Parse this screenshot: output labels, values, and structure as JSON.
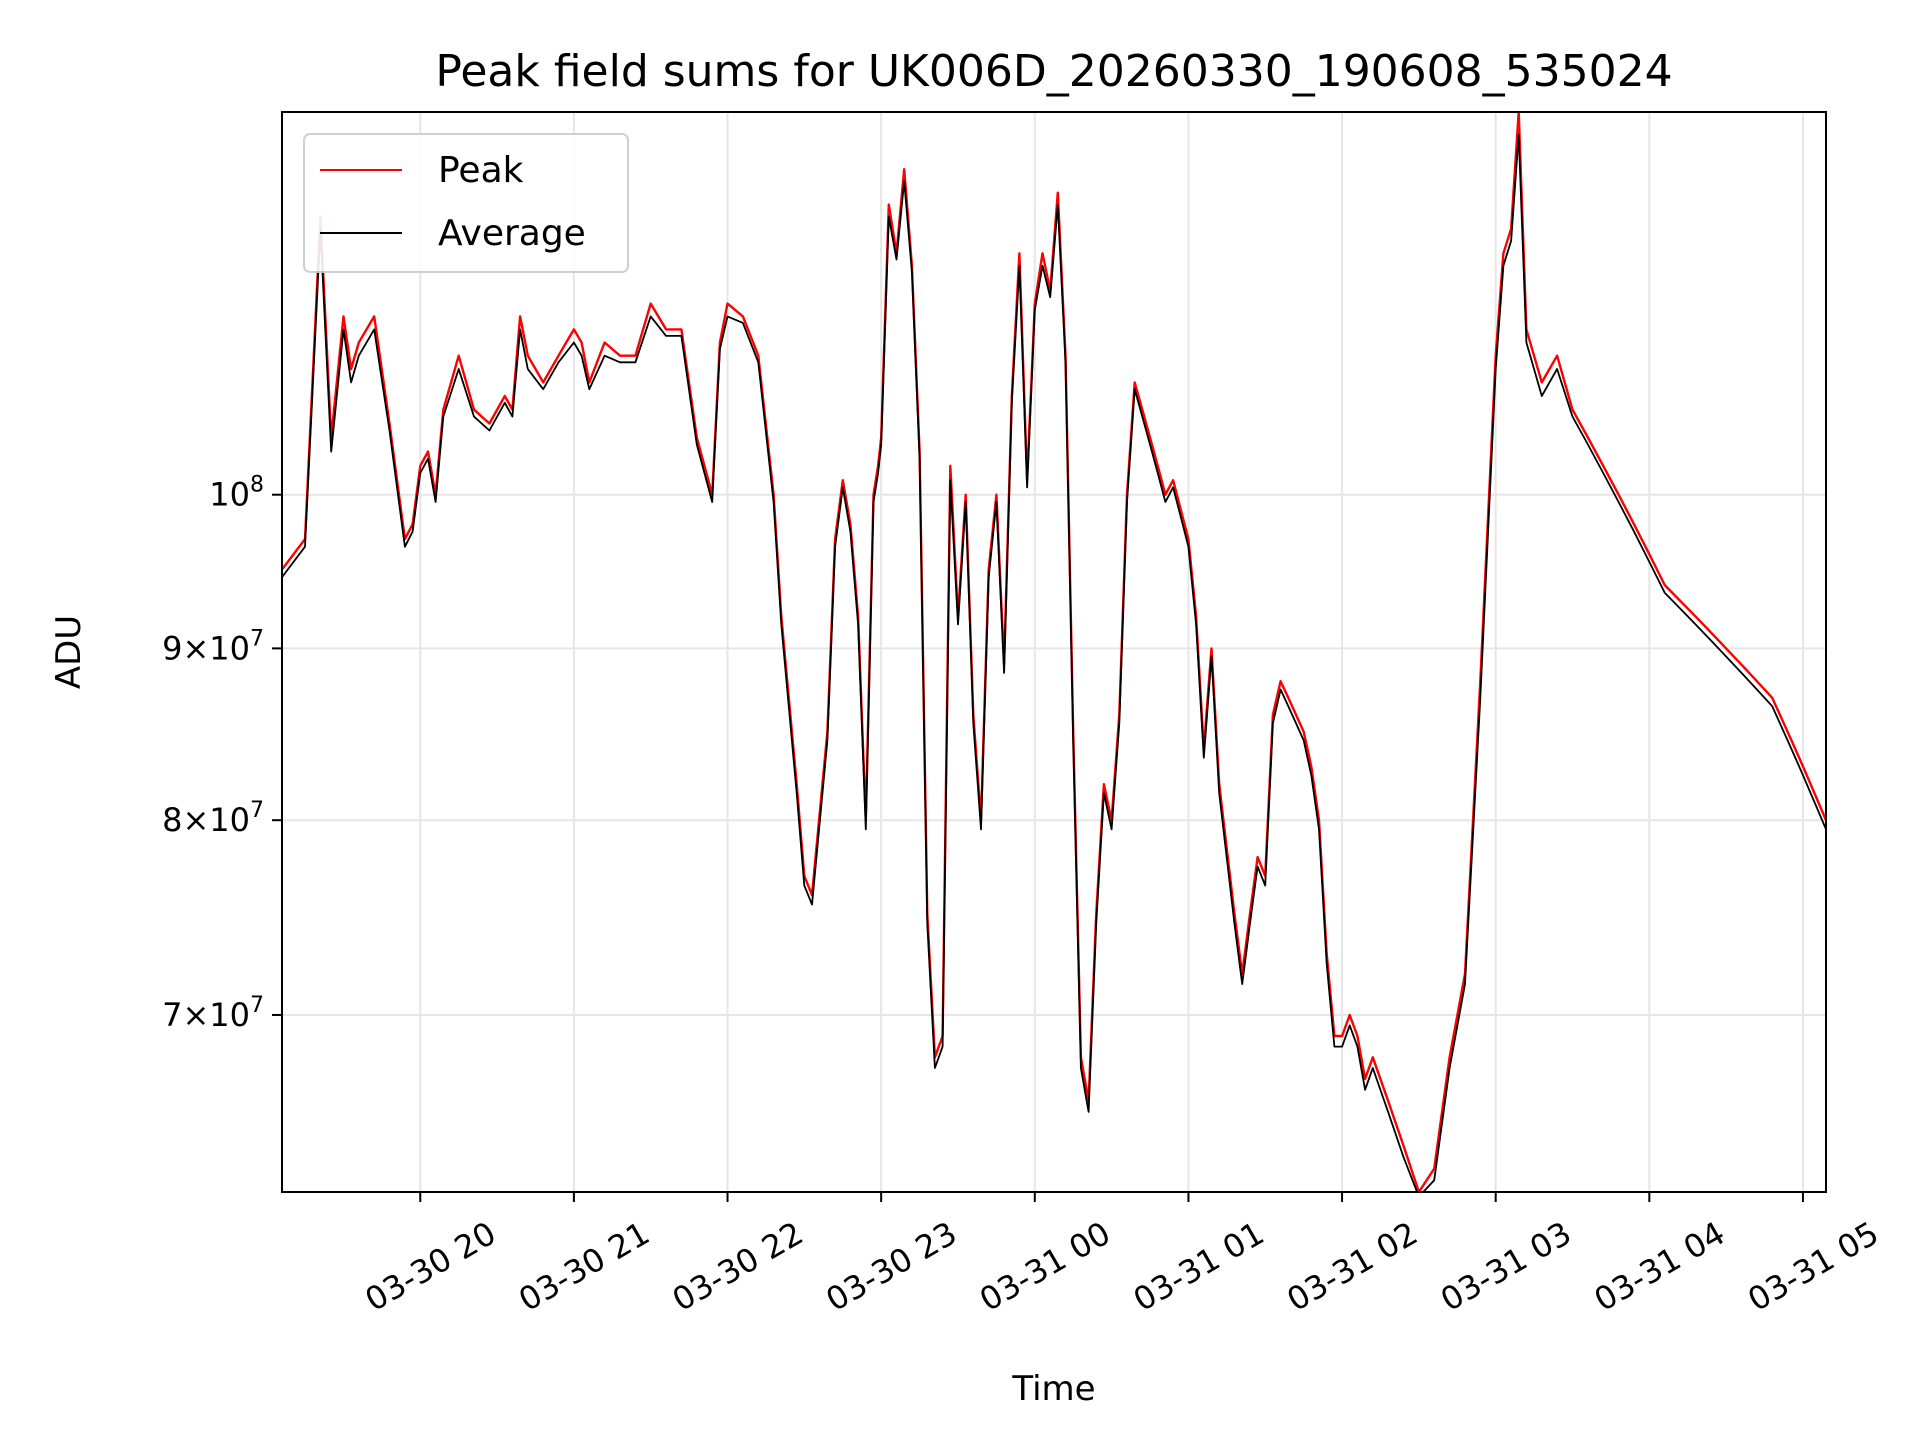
{
  "chart_data": {
    "type": "line",
    "title": "Peak field sums for UK006D_20260330_190608_535024",
    "xlabel": "Time",
    "ylabel": "ADU",
    "x_range_hours": [
      19.1,
      29.15
    ],
    "y_scale": "log",
    "ylim": [
      62000000,
      130000000
    ],
    "grid": true,
    "legend_position": "top-left",
    "x_ticks": [
      {
        "label": "03-30 20",
        "hour": 20
      },
      {
        "label": "03-30 21",
        "hour": 21
      },
      {
        "label": "03-30 22",
        "hour": 22
      },
      {
        "label": "03-30 23",
        "hour": 23
      },
      {
        "label": "03-31 00",
        "hour": 24
      },
      {
        "label": "03-31 01",
        "hour": 25
      },
      {
        "label": "03-31 02",
        "hour": 26
      },
      {
        "label": "03-31 03",
        "hour": 27
      },
      {
        "label": "03-31 04",
        "hour": 28
      },
      {
        "label": "03-31 05",
        "hour": 29
      }
    ],
    "y_ticks": [
      {
        "value": 70000000,
        "base": "7",
        "exp": "7",
        "form": "mult"
      },
      {
        "value": 80000000,
        "base": "8",
        "exp": "7",
        "form": "mult"
      },
      {
        "value": 90000000,
        "base": "9",
        "exp": "7",
        "form": "mult"
      },
      {
        "value": 100000000,
        "base": "10",
        "exp": "8",
        "form": "pow"
      }
    ],
    "series": [
      {
        "name": "Peak",
        "color": "#ff0000",
        "x": [
          19.1,
          19.25,
          19.35,
          19.42,
          19.5,
          19.55,
          19.6,
          19.7,
          19.8,
          19.9,
          19.95,
          20.0,
          20.05,
          20.1,
          20.15,
          20.25,
          20.35,
          20.45,
          20.55,
          20.6,
          20.65,
          20.7,
          20.8,
          20.9,
          21.0,
          21.05,
          21.1,
          21.2,
          21.3,
          21.4,
          21.5,
          21.6,
          21.7,
          21.8,
          21.9,
          21.95,
          22.0,
          22.1,
          22.2,
          22.3,
          22.35,
          22.45,
          22.5,
          22.55,
          22.65,
          22.7,
          22.75,
          22.8,
          22.85,
          22.9,
          22.95,
          22.98,
          23.0,
          23.05,
          23.1,
          23.15,
          23.2,
          23.25,
          23.3,
          23.35,
          23.4,
          23.45,
          23.5,
          23.55,
          23.6,
          23.65,
          23.7,
          23.75,
          23.8,
          23.85,
          23.9,
          23.95,
          24.0,
          24.05,
          24.1,
          24.15,
          24.2,
          24.25,
          24.3,
          24.35,
          24.4,
          24.45,
          24.5,
          24.55,
          24.6,
          24.65,
          24.7,
          24.75,
          24.8,
          24.85,
          24.9,
          24.95,
          25.0,
          25.05,
          25.1,
          25.15,
          25.2,
          25.3,
          25.35,
          25.4,
          25.45,
          25.5,
          25.55,
          25.6,
          25.65,
          25.7,
          25.75,
          25.8,
          25.85,
          25.9,
          25.95,
          26.0,
          26.05,
          26.1,
          26.15,
          26.2,
          26.3,
          26.4,
          26.5,
          26.6,
          26.7,
          26.8,
          26.9,
          27.0,
          27.05,
          27.1,
          27.15,
          27.2,
          27.3,
          27.4,
          27.5,
          27.6,
          27.7,
          27.8,
          27.9,
          28.0,
          28.1,
          28.2,
          28.3,
          28.4,
          28.5,
          28.6,
          28.7,
          28.8,
          28.85,
          28.9,
          28.95,
          29.0,
          29.05,
          29.1,
          29.15
        ],
        "values": [
          95000000,
          97000000,
          121000000,
          104000000,
          113000000,
          109000000,
          111000000,
          113000000,
          105000000,
          97000000,
          98000000,
          102000000,
          103000000,
          100000000,
          106000000,
          110000000,
          106000000,
          105000000,
          107000000,
          106000000,
          113000000,
          110000000,
          108000000,
          110000000,
          112000000,
          111000000,
          108000000,
          111000000,
          110000000,
          110000000,
          114000000,
          112000000,
          112000000,
          104000000,
          100000000,
          111000000,
          114000000,
          113000000,
          110000000,
          100000000,
          92000000,
          82000000,
          77000000,
          76000000,
          85000000,
          97000000,
          101000000,
          98000000,
          92000000,
          80000000,
          100000000,
          102000000,
          104000000,
          122000000,
          118000000,
          125000000,
          117000000,
          103000000,
          75000000,
          68000000,
          69000000,
          102000000,
          92000000,
          100000000,
          86000000,
          80000000,
          95000000,
          100000000,
          89000000,
          107000000,
          118000000,
          101000000,
          114000000,
          118000000,
          115000000,
          123000000,
          110000000,
          85000000,
          68000000,
          66000000,
          75000000,
          82000000,
          80000000,
          86000000,
          100000000,
          108000000,
          106000000,
          104000000,
          102000000,
          100000000,
          101000000,
          99000000,
          97000000,
          92000000,
          84000000,
          90000000,
          82000000,
          75000000,
          72000000,
          75000000,
          78000000,
          77000000,
          86000000,
          88000000,
          87000000,
          86000000,
          85000000,
          83000000,
          80000000,
          73000000,
          69000000,
          69000000,
          70000000,
          69000000,
          67000000,
          68000000,
          66000000,
          64000000,
          62000000,
          63000000,
          68000000,
          72000000,
          88000000,
          110000000,
          118000000,
          120000000,
          130000000,
          112000000,
          108000000,
          110000000,
          106000000,
          104000000,
          102000000,
          100000000,
          98000000,
          96000000,
          94000000,
          93000000,
          92000000,
          91000000,
          90000000,
          89000000,
          88000000,
          87000000,
          86000000,
          85000000,
          84000000,
          83000000,
          82000000,
          81000000,
          80000000
        ]
      },
      {
        "name": "Average",
        "color": "#000000",
        "x": [
          19.1,
          19.25,
          19.35,
          19.42,
          19.5,
          19.55,
          19.6,
          19.7,
          19.8,
          19.9,
          19.95,
          20.0,
          20.05,
          20.1,
          20.15,
          20.25,
          20.35,
          20.45,
          20.55,
          20.6,
          20.65,
          20.7,
          20.8,
          20.9,
          21.0,
          21.05,
          21.1,
          21.2,
          21.3,
          21.4,
          21.5,
          21.6,
          21.7,
          21.8,
          21.9,
          21.95,
          22.0,
          22.1,
          22.2,
          22.3,
          22.35,
          22.45,
          22.5,
          22.55,
          22.65,
          22.7,
          22.75,
          22.8,
          22.85,
          22.9,
          22.95,
          22.98,
          23.0,
          23.05,
          23.1,
          23.15,
          23.2,
          23.25,
          23.3,
          23.35,
          23.4,
          23.45,
          23.5,
          23.55,
          23.6,
          23.65,
          23.7,
          23.75,
          23.8,
          23.85,
          23.9,
          23.95,
          24.0,
          24.05,
          24.1,
          24.15,
          24.2,
          24.25,
          24.3,
          24.35,
          24.4,
          24.45,
          24.5,
          24.55,
          24.6,
          24.65,
          24.7,
          24.75,
          24.8,
          24.85,
          24.9,
          24.95,
          25.0,
          25.05,
          25.1,
          25.15,
          25.2,
          25.3,
          25.35,
          25.4,
          25.45,
          25.5,
          25.55,
          25.6,
          25.65,
          25.7,
          25.75,
          25.8,
          25.85,
          25.9,
          25.95,
          26.0,
          26.05,
          26.1,
          26.15,
          26.2,
          26.3,
          26.4,
          26.5,
          26.6,
          26.7,
          26.8,
          26.9,
          27.0,
          27.05,
          27.1,
          27.15,
          27.2,
          27.3,
          27.4,
          27.5,
          27.6,
          27.7,
          27.8,
          27.9,
          28.0,
          28.1,
          28.2,
          28.3,
          28.4,
          28.5,
          28.6,
          28.7,
          28.8,
          28.85,
          28.9,
          28.95,
          29.0,
          29.05,
          29.1,
          29.15
        ],
        "values": [
          94500000,
          96500000,
          120000000,
          103000000,
          112000000,
          108000000,
          110000000,
          112000000,
          104500000,
          96500000,
          97500000,
          101500000,
          102500000,
          99500000,
          105500000,
          109000000,
          105500000,
          104500000,
          106500000,
          105500000,
          112000000,
          109000000,
          107500000,
          109500000,
          111000000,
          110000000,
          107500000,
          110000000,
          109500000,
          109500000,
          113000000,
          111500000,
          111500000,
          103500000,
          99500000,
          110500000,
          113000000,
          112500000,
          109500000,
          99500000,
          91500000,
          81500000,
          76500000,
          75500000,
          84500000,
          96500000,
          100500000,
          97500000,
          91500000,
          79500000,
          99500000,
          101500000,
          103500000,
          121000000,
          117500000,
          124000000,
          116500000,
          102500000,
          74500000,
          67500000,
          68500000,
          101000000,
          91500000,
          99500000,
          85500000,
          79500000,
          94500000,
          99500000,
          88500000,
          106500000,
          117000000,
          100500000,
          113500000,
          117000000,
          114500000,
          122000000,
          109500000,
          84500000,
          67500000,
          65500000,
          74500000,
          81500000,
          79500000,
          85500000,
          99500000,
          107500000,
          105500000,
          103500000,
          101500000,
          99500000,
          100500000,
          98500000,
          96500000,
          91500000,
          83500000,
          89500000,
          81500000,
          74500000,
          71500000,
          74500000,
          77500000,
          76500000,
          85500000,
          87500000,
          86500000,
          85500000,
          84500000,
          82500000,
          79500000,
          72500000,
          68500000,
          68500000,
          69500000,
          68500000,
          66500000,
          67500000,
          65500000,
          63500000,
          61800000,
          62500000,
          67500000,
          71500000,
          87000000,
          109000000,
          117000000,
          119000000,
          128000000,
          111000000,
          107000000,
          109000000,
          105500000,
          103500000,
          101500000,
          99500000,
          97500000,
          95500000,
          93500000,
          92500000,
          91500000,
          90500000,
          89500000,
          88500000,
          87500000,
          86500000,
          85500000,
          84500000,
          83500000,
          82500000,
          81500000,
          80500000,
          79500000
        ]
      }
    ]
  }
}
